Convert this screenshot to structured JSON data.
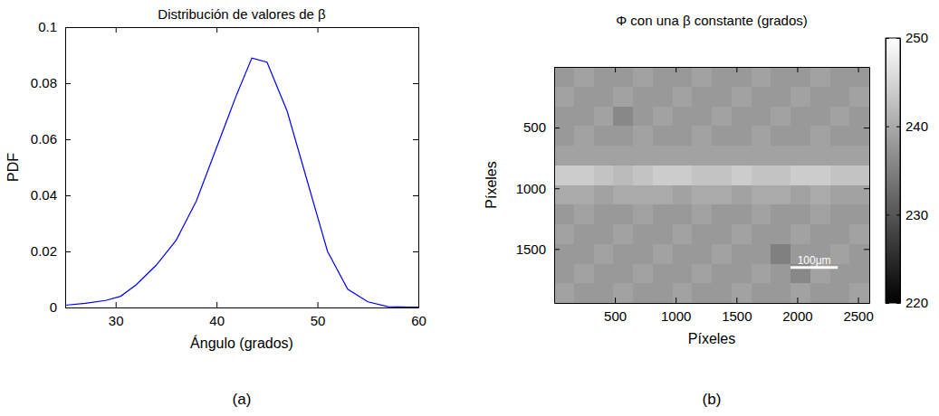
{
  "chart_data": [
    {
      "type": "line",
      "label": "(a)",
      "title": "Distribución de valores de β",
      "x_label": "Ángulo (grados)",
      "y_label": "PDF",
      "x": [
        25,
        27,
        29,
        30.5,
        32,
        34,
        36,
        38,
        40,
        42,
        43.5,
        45,
        47,
        49,
        51,
        53,
        55,
        57,
        59,
        60
      ],
      "values": [
        0.0008,
        0.0015,
        0.0025,
        0.004,
        0.008,
        0.015,
        0.024,
        0.038,
        0.057,
        0.076,
        0.089,
        0.0875,
        0.07,
        0.045,
        0.02,
        0.0065,
        0.002,
        0.0003,
        0.0001,
        0.0001
      ],
      "color": "#0000ff",
      "xlim": [
        25,
        60
      ],
      "xticks": [
        30,
        40,
        50,
        60
      ],
      "ylim": [
        0,
        0.1
      ],
      "yticks": [
        0,
        0.02,
        0.04,
        0.06,
        0.08,
        0.1
      ],
      "grid": false
    },
    {
      "type": "heatmap",
      "label": "(b)",
      "title": "Φ con una β constante (grados)",
      "x_label": "Píxeles",
      "y_label": "Píxeles",
      "xlim": [
        0.5,
        2592.5
      ],
      "xticks": [
        500,
        1000,
        1500,
        2000,
        2500
      ],
      "ylim": [
        0.5,
        1944.5
      ],
      "yticks": [
        500,
        1000,
        1500
      ],
      "cells": [
        [
          238,
          239,
          238,
          238,
          239,
          238,
          238,
          239,
          238,
          238,
          239,
          238,
          238,
          239,
          238,
          238
        ],
        [
          239,
          238,
          238,
          239,
          238,
          238,
          239,
          238,
          238,
          239,
          238,
          238,
          239,
          238,
          238,
          239
        ],
        [
          238,
          238,
          239,
          236,
          238,
          239,
          238,
          238,
          239,
          238,
          238,
          239,
          238,
          238,
          239,
          238
        ],
        [
          238,
          239,
          238,
          238,
          239,
          238,
          238,
          239,
          238,
          238,
          239,
          238,
          238,
          239,
          238,
          238
        ],
        [
          239,
          239,
          239,
          239,
          239,
          239,
          239,
          239,
          239,
          239,
          239,
          239,
          239,
          239,
          239,
          239
        ],
        [
          244,
          244,
          243,
          242,
          243,
          244,
          244,
          243,
          243,
          244,
          243,
          243,
          244,
          244,
          243,
          243
        ],
        [
          240,
          240,
          239,
          240,
          240,
          240,
          239,
          240,
          240,
          239,
          240,
          240,
          239,
          240,
          239,
          239
        ],
        [
          238,
          239,
          238,
          238,
          239,
          238,
          238,
          239,
          238,
          238,
          239,
          238,
          238,
          239,
          238,
          238
        ],
        [
          239,
          238,
          238,
          239,
          238,
          238,
          239,
          238,
          238,
          239,
          238,
          238,
          239,
          238,
          238,
          239
        ],
        [
          238,
          238,
          239,
          238,
          238,
          239,
          238,
          238,
          239,
          238,
          238,
          235,
          238,
          238,
          239,
          238
        ],
        [
          238,
          239,
          238,
          238,
          239,
          238,
          238,
          239,
          238,
          238,
          239,
          238,
          236,
          239,
          238,
          238
        ],
        [
          239,
          238,
          238,
          239,
          238,
          238,
          239,
          238,
          238,
          239,
          238,
          238,
          239,
          238,
          238,
          239
        ]
      ],
      "colorbar": {
        "range": [
          220,
          250
        ],
        "ticks": [
          220,
          230,
          240,
          250
        ]
      },
      "annotations": [
        {
          "text": "100μm"
        }
      ]
    }
  ]
}
